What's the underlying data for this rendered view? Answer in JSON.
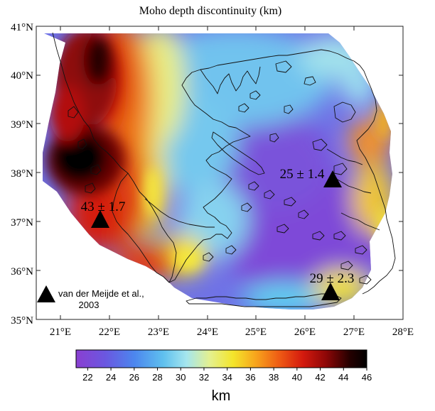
{
  "title": "Moho depth discontinuity (km)",
  "axes": {
    "lat_ticks": [
      "41°N",
      "40°N",
      "39°N",
      "38°N",
      "37°N",
      "36°N",
      "35°N"
    ],
    "lon_ticks": [
      "21°E",
      "22°E",
      "23°E",
      "24°E",
      "25°E",
      "26°E",
      "27°E",
      "28°E"
    ],
    "lon_range": [
      20.5,
      28
    ],
    "lat_range": [
      35,
      41
    ]
  },
  "stations": [
    {
      "label": "43 ± 1.7",
      "lon": 21.8,
      "lat": 36.95
    },
    {
      "label": "25 ± 1.4",
      "lon": 26.55,
      "lat": 37.85
    },
    {
      "label": "29 ± 2.3",
      "lon": 26.5,
      "lat": 35.5
    }
  ],
  "legend": {
    "line1": "van der Meijde et al.,",
    "line2": "2003"
  },
  "colorbar": {
    "ticks": [
      "22",
      "24",
      "26",
      "28",
      "30",
      "32",
      "34",
      "36",
      "38",
      "40",
      "42",
      "44",
      "46"
    ],
    "unit": "km",
    "min": 21,
    "max": 46,
    "colors": [
      "#8a3fd1",
      "#5b62e0",
      "#4a8ef0",
      "#5fc4ee",
      "#9ee7f0",
      "#e7f08f",
      "#f4ea2b",
      "#f7a21c",
      "#ee5a14",
      "#d41a0e",
      "#8e0707",
      "#2a0000",
      "#000000"
    ]
  }
}
